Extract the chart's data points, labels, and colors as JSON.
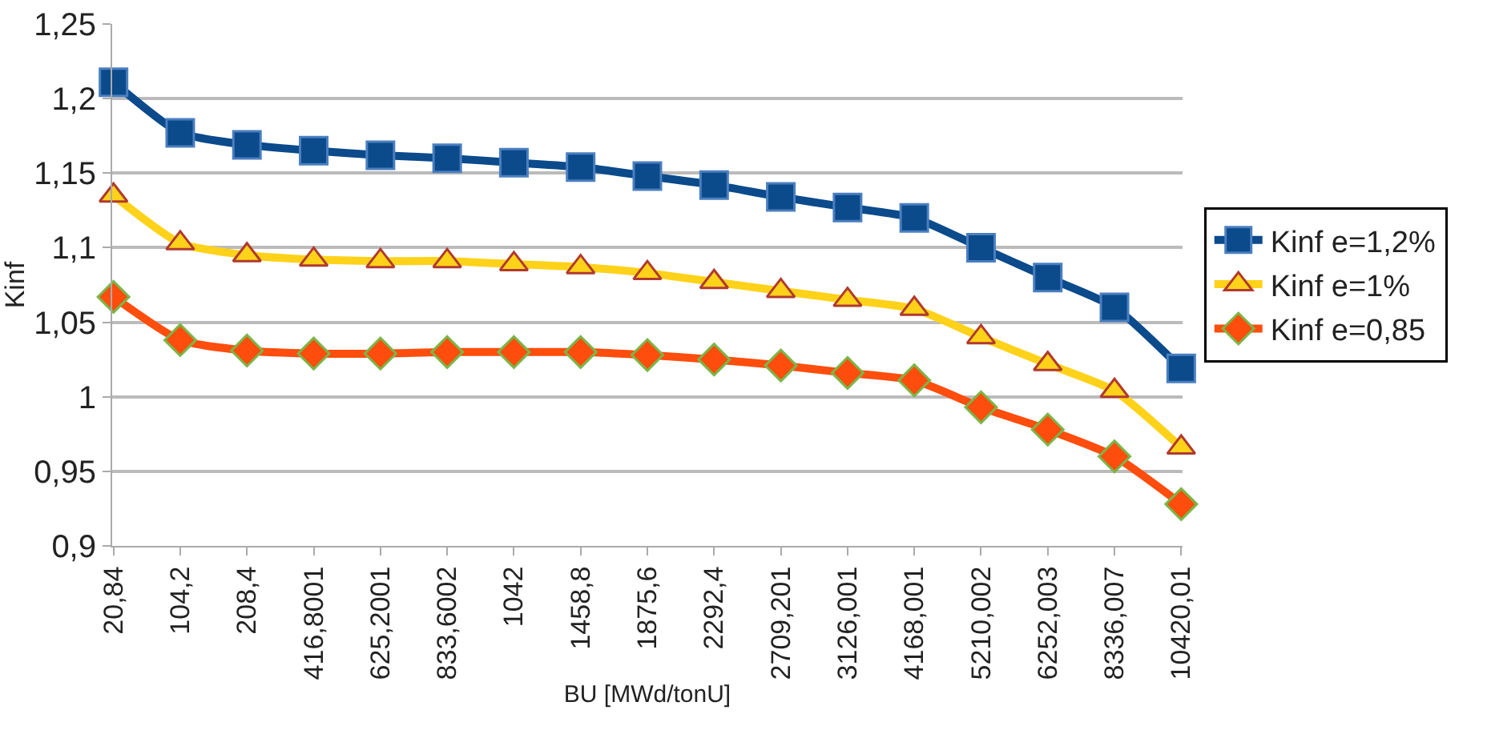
{
  "chart_data": {
    "type": "line",
    "xlabel": "BU [MWd/tonU]",
    "ylabel": "Kinf",
    "categories": [
      "20,84",
      "104,2",
      "208,4",
      "416,8001",
      "625,2001",
      "833,6002",
      "1042",
      "1458,8",
      "1875,6",
      "2292,4",
      "2709,201",
      "3126,001",
      "4168,001",
      "5210,002",
      "6252,003",
      "8336,007",
      "10420,01"
    ],
    "series": [
      {
        "name": "Kinf e=1,2%",
        "color": "#0b4a8b",
        "marker": "square",
        "values": [
          1.211,
          1.177,
          1.169,
          1.165,
          1.162,
          1.16,
          1.157,
          1.154,
          1.148,
          1.142,
          1.134,
          1.127,
          1.12,
          1.1,
          1.08,
          1.06,
          1.019
        ]
      },
      {
        "name": "Kinf e=1%",
        "color": "#ffd21a",
        "marker": "triangle",
        "values": [
          1.135,
          1.103,
          1.095,
          1.092,
          1.091,
          1.091,
          1.089,
          1.087,
          1.083,
          1.077,
          1.071,
          1.065,
          1.059,
          1.04,
          1.022,
          1.004,
          0.966
        ]
      },
      {
        "name": "Kinf e=0,85",
        "color": "#ff4d0d",
        "marker": "diamond",
        "values": [
          1.067,
          1.038,
          1.031,
          1.029,
          1.029,
          1.03,
          1.03,
          1.03,
          1.028,
          1.025,
          1.021,
          1.016,
          1.011,
          0.993,
          0.978,
          0.96,
          0.928
        ]
      }
    ],
    "ylim": [
      0.9,
      1.25
    ],
    "yticks": [
      {
        "value": 0.9,
        "label": "0,9"
      },
      {
        "value": 0.95,
        "label": "0,95"
      },
      {
        "value": 1,
        "label": "1"
      },
      {
        "value": 1.05,
        "label": "1,05"
      },
      {
        "value": 1.1,
        "label": "1,1"
      },
      {
        "value": 1.15,
        "label": "1,15"
      },
      {
        "value": 1.2,
        "label": "1,2"
      },
      {
        "value": 1.25,
        "label": "1,25"
      }
    ],
    "grid": "y",
    "legend": "right",
    "line_style": "solid"
  }
}
